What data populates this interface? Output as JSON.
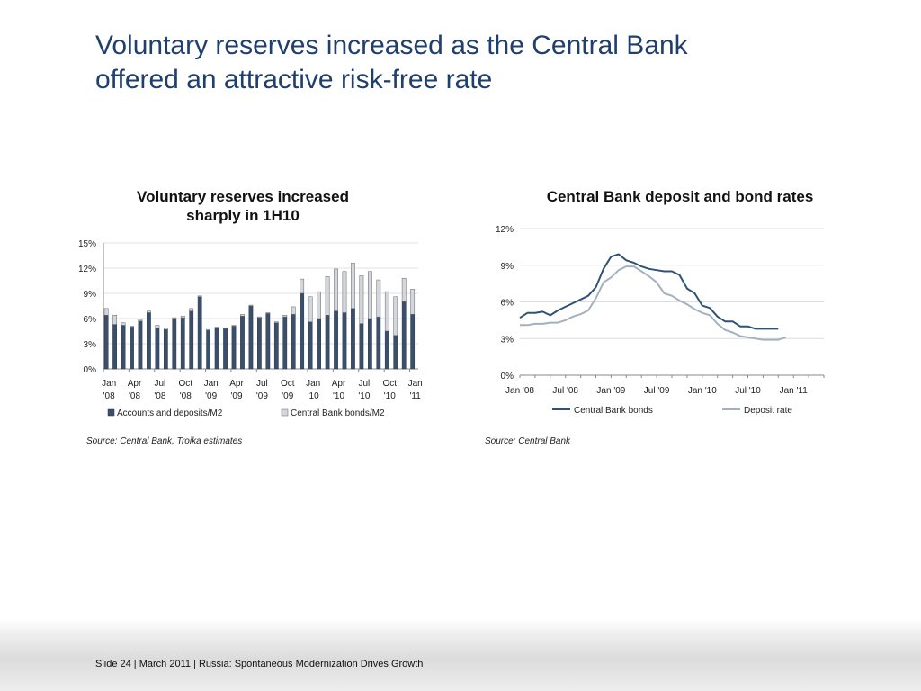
{
  "slide": {
    "title_line1": "Voluntary reserves increased as the Central Bank",
    "title_line2": "offered an attractive risk-free rate",
    "footer": "Slide 24  | March 2011 | Russia: Spontaneous Modernization Drives Growth"
  },
  "colors": {
    "title": "#1f3f6e",
    "accounts": "#3b4f6a",
    "bonds_bar": "#d3d6db",
    "line_bonds": "#2e5377",
    "line_deposit": "#a3b0c0"
  },
  "chart_data": [
    {
      "type": "bar",
      "stacked": true,
      "title_line1": "Voluntary reserves increased",
      "title_line2": "sharply in 1H10",
      "ylim": [
        0,
        15
      ],
      "y_ticks": [
        "0%",
        "3%",
        "6%",
        "9%",
        "12%",
        "15%"
      ],
      "x_tick_labels": [
        [
          "Jan",
          "'08"
        ],
        [
          "Apr",
          "'08"
        ],
        [
          "Jul",
          "'08"
        ],
        [
          "Oct",
          "'08"
        ],
        [
          "Jan",
          "'09"
        ],
        [
          "Apr",
          "'09"
        ],
        [
          "Jul",
          "'09"
        ],
        [
          "Oct",
          "'09"
        ],
        [
          "Jan",
          "'10"
        ],
        [
          "Apr",
          "'10"
        ],
        [
          "Jul",
          "'10"
        ],
        [
          "Oct",
          "'10"
        ],
        [
          "Jan",
          "'11"
        ]
      ],
      "series": [
        {
          "name": "Accounts and deposits/M2",
          "values": [
            6.4,
            5.3,
            5.2,
            5.0,
            5.7,
            6.7,
            4.9,
            4.7,
            6.0,
            6.1,
            6.9,
            8.6,
            4.6,
            4.9,
            4.8,
            5.1,
            6.3,
            7.5,
            6.1,
            6.6,
            5.5,
            6.2,
            6.5,
            9.0,
            5.6,
            6.0,
            6.4,
            6.9,
            6.7,
            7.2,
            5.4,
            6.0,
            6.2,
            4.5,
            4.0,
            8.0,
            6.5
          ]
        },
        {
          "name": "Central Bank bonds/M2",
          "values": [
            0.8,
            1.1,
            0.3,
            0.1,
            0.2,
            0.2,
            0.3,
            0.2,
            0.1,
            0.2,
            0.3,
            0.1,
            0.1,
            0.1,
            0.1,
            0.1,
            0.2,
            0.1,
            0.1,
            0.1,
            0.1,
            0.2,
            0.9,
            1.7,
            3.0,
            3.2,
            4.6,
            5.0,
            4.9,
            5.4,
            5.7,
            5.6,
            4.4,
            4.7,
            4.6,
            2.8,
            3.0
          ]
        }
      ]
    },
    {
      "type": "line",
      "title": "Central Bank deposit and bond rates",
      "ylim": [
        0,
        12
      ],
      "y_ticks": [
        "0%",
        "3%",
        "6%",
        "9%",
        "12%"
      ],
      "x_tick_labels": [
        "Jan '08",
        "Jul '08",
        "Jan '09",
        "Jul '09",
        "Jan '10",
        "Jul '10",
        "Jan '11"
      ],
      "x_range_months": [
        0,
        40
      ],
      "series": [
        {
          "name": "Central Bank bonds",
          "x": [
            0,
            1,
            2,
            3,
            4,
            5,
            6,
            7,
            8,
            9,
            10,
            11,
            12,
            13,
            14,
            15,
            16,
            17,
            18,
            19,
            20,
            21,
            22,
            23,
            24,
            25,
            26,
            27,
            28,
            29,
            30,
            31,
            32,
            33,
            34
          ],
          "values": [
            4.7,
            5.1,
            5.1,
            5.2,
            4.9,
            5.3,
            5.6,
            5.9,
            6.2,
            6.5,
            7.2,
            8.7,
            9.7,
            9.9,
            9.4,
            9.2,
            8.9,
            8.7,
            8.6,
            8.5,
            8.5,
            8.2,
            7.1,
            6.7,
            5.7,
            5.5,
            4.8,
            4.4,
            4.4,
            4.0,
            4.0,
            3.8,
            3.8,
            3.8,
            3.8
          ]
        },
        {
          "name": "Deposit rate",
          "x": [
            0,
            1,
            2,
            3,
            4,
            5,
            6,
            7,
            8,
            9,
            10,
            11,
            12,
            13,
            14,
            15,
            16,
            17,
            18,
            19,
            20,
            21,
            22,
            23,
            24,
            25,
            26,
            27,
            28,
            29,
            30,
            31,
            32,
            33,
            34,
            35
          ],
          "values": [
            4.1,
            4.1,
            4.2,
            4.2,
            4.3,
            4.3,
            4.5,
            4.8,
            5.0,
            5.3,
            6.3,
            7.6,
            8.0,
            8.6,
            8.9,
            8.9,
            8.5,
            8.1,
            7.6,
            6.7,
            6.5,
            6.1,
            5.8,
            5.4,
            5.1,
            4.9,
            4.2,
            3.7,
            3.5,
            3.2,
            3.1,
            3.0,
            2.9,
            2.9,
            2.9,
            3.1
          ]
        }
      ]
    }
  ],
  "sources": {
    "left": "Source: Central Bank, Troika estimates",
    "right": "Source: Central Bank"
  }
}
